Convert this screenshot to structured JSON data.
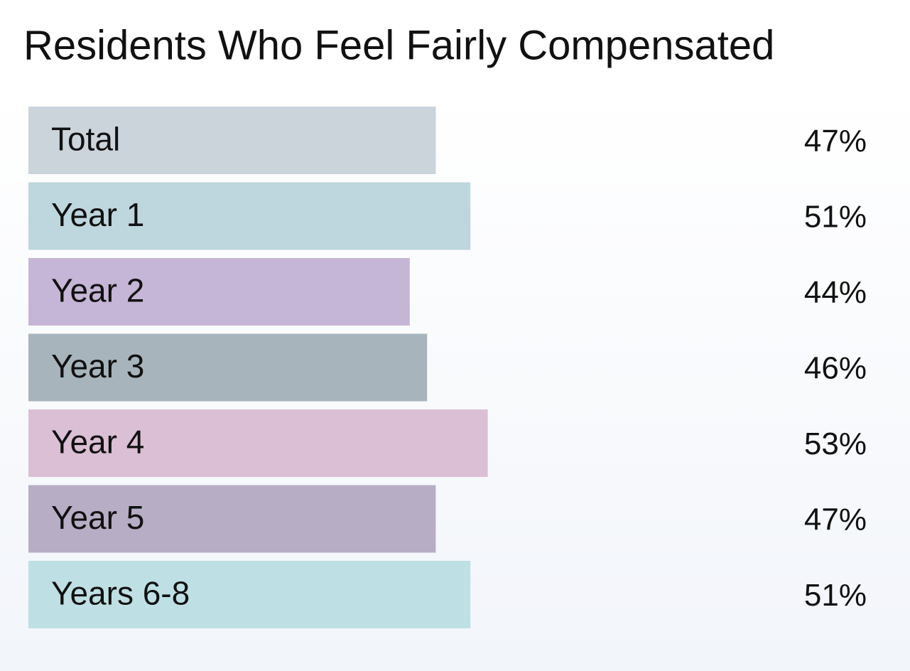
{
  "chart_data": {
    "type": "bar",
    "orientation": "horizontal",
    "title": "Residents Who Feel Fairly Compensated",
    "categories": [
      "Total",
      "Year 1",
      "Year 2",
      "Year 3",
      "Year 4",
      "Year 5",
      "Years 6-8"
    ],
    "values": [
      47,
      51,
      44,
      46,
      53,
      47,
      51
    ],
    "value_labels": [
      "47%",
      "51%",
      "44%",
      "46%",
      "53%",
      "47%",
      "51%"
    ],
    "colors": [
      "#cbd3db",
      "#bed6de",
      "#c5b5d6",
      "#a7b4bc",
      "#dbbfd5",
      "#b7adc4",
      "#bee0e4"
    ],
    "xlim": [
      0,
      100
    ]
  }
}
